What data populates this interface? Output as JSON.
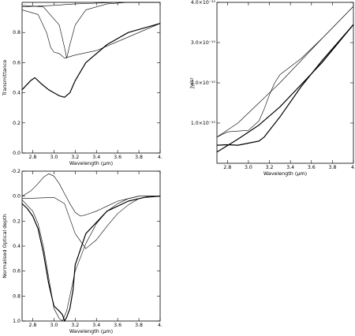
{
  "chart_data": [
    {
      "type": "line",
      "title": "",
      "xlabel": "Wavelength (μm)",
      "ylabel": "Transmittance",
      "xlim": [
        2.7,
        4.0
      ],
      "ylim": [
        0.0,
        1.0
      ],
      "x_ticks": [
        2.8,
        3.0,
        3.2,
        3.4,
        3.6,
        3.8,
        4.0
      ],
      "x_tick_labels": [
        "2.8",
        "3.0",
        "3.2",
        "3.4",
        "3.6",
        "3.8",
        "4."
      ],
      "y_ticks": [
        0.0,
        0.2,
        0.4,
        0.6,
        0.8
      ],
      "y_tick_labels": [
        "0.0",
        "0.2",
        "0.4",
        "0.6",
        "0.8"
      ],
      "series": [
        {
          "style": "thin",
          "x": [
            2.7,
            2.9,
            3.05,
            3.1,
            3.12,
            3.15,
            3.2,
            3.3,
            3.5,
            3.7,
            4.0
          ],
          "y": [
            0.98,
            0.97,
            0.85,
            0.7,
            0.63,
            0.72,
            0.85,
            0.95,
            0.99,
            1.0,
            1.0
          ]
        },
        {
          "style": "thin",
          "x": [
            2.7,
            2.85,
            2.93,
            2.97,
            3.0,
            3.05,
            3.1,
            3.2,
            3.4,
            3.6,
            4.0
          ],
          "y": [
            0.95,
            0.92,
            0.8,
            0.7,
            0.67,
            0.66,
            0.63,
            0.65,
            0.68,
            0.74,
            0.86
          ]
        },
        {
          "style": "thin",
          "x": [
            2.7,
            3.0,
            3.2,
            3.4,
            3.6,
            3.8,
            4.0
          ],
          "y": [
            0.97,
            0.98,
            0.99,
            0.995,
            1.0,
            1.0,
            1.0
          ]
        },
        {
          "style": "thick",
          "x": [
            2.7,
            2.78,
            2.82,
            2.88,
            2.95,
            3.0,
            3.05,
            3.1,
            3.15,
            3.2,
            3.3,
            3.5,
            3.7,
            4.0
          ],
          "y": [
            0.42,
            0.48,
            0.5,
            0.46,
            0.42,
            0.4,
            0.38,
            0.37,
            0.4,
            0.48,
            0.6,
            0.72,
            0.8,
            0.86
          ]
        }
      ]
    },
    {
      "type": "line",
      "title": "",
      "xlabel": "Wavelength (μm)",
      "ylabel": "Jy/sr",
      "xlim": [
        2.7,
        4.0
      ],
      "ylim": [
        0,
        4e-10
      ],
      "x_ticks": [
        2.8,
        3.0,
        3.2,
        3.4,
        3.6,
        3.8,
        4.0
      ],
      "x_tick_labels": [
        "2.8",
        "3.0",
        "3.2",
        "3.4",
        "3.6",
        "3.8",
        "4."
      ],
      "y_ticks": [
        1e-10,
        2e-10,
        3e-10,
        4e-10
      ],
      "y_tick_labels": [
        "1.0×10⁻¹⁰",
        "2.0×10⁻¹⁰",
        "3.0×10⁻¹⁰",
        "4.0×10⁻¹⁰"
      ],
      "series": [
        {
          "style": "thin",
          "x": [
            2.7,
            2.9,
            3.1,
            3.3,
            3.5,
            3.7,
            4.0
          ],
          "y": [
            6.5e-11,
            1e-10,
            1.5e-10,
            2e-10,
            2.55e-10,
            3.1e-10,
            3.9e-10
          ]
        },
        {
          "style": "thick",
          "x": [
            2.7,
            2.9,
            3.1,
            3.3,
            3.5,
            3.7,
            4.0
          ],
          "y": [
            2.8e-11,
            6e-11,
            9.5e-11,
            1.4e-10,
            1.95e-10,
            2.5e-10,
            3.45e-10
          ]
        },
        {
          "style": "thin",
          "x": [
            2.7,
            2.8,
            2.9,
            3.0,
            3.1,
            3.15,
            3.2,
            3.25,
            3.3,
            3.5,
            3.7,
            4.0
          ],
          "y": [
            6.5e-11,
            7.8e-11,
            8e-11,
            8.2e-11,
            1.05e-10,
            1.35e-10,
            1.7e-10,
            2e-10,
            2.2e-10,
            2.6e-10,
            3.1e-10,
            3.9e-10
          ]
        },
        {
          "style": "thick",
          "x": [
            2.7,
            2.8,
            2.9,
            3.0,
            3.1,
            3.15,
            3.2,
            3.3,
            3.5,
            3.7,
            4.0
          ],
          "y": [
            4.5e-11,
            4.6e-11,
            4.5e-11,
            5e-11,
            5.5e-11,
            6.5e-11,
            8.2e-11,
            1.15e-10,
            1.9e-10,
            2.55e-10,
            3.45e-10
          ]
        }
      ]
    },
    {
      "type": "line",
      "title": "",
      "xlabel": "Wavelength (μm)",
      "ylabel": "Normalised Optical depth",
      "xlim": [
        2.7,
        4.0
      ],
      "ylim": [
        -0.2,
        1.0
      ],
      "y_inverted": true,
      "x_ticks": [
        2.8,
        3.0,
        3.2,
        3.4,
        3.6,
        3.8,
        4.0
      ],
      "x_tick_labels": [
        "2.8",
        "3.0",
        "3.2",
        "3.4",
        "3.6",
        "3.8",
        "4."
      ],
      "y_ticks": [
        -0.2,
        0.0,
        0.2,
        0.4,
        0.6,
        0.8,
        1.0
      ],
      "y_tick_labels": [
        "-0.2",
        "0.0",
        "0.2",
        "0.4",
        "0.6",
        "0.8",
        "1.0"
      ],
      "series": [
        {
          "style": "thin",
          "x": [
            2.7,
            2.78,
            2.85,
            2.9,
            2.95,
            3.0,
            3.05,
            3.1,
            3.15,
            3.2,
            3.25,
            3.3,
            3.4,
            3.5,
            3.6,
            3.7,
            3.8,
            4.0
          ],
          "y": [
            0.0,
            -0.04,
            -0.1,
            -0.15,
            -0.18,
            -0.16,
            -0.1,
            -0.02,
            0.06,
            0.13,
            0.16,
            0.15,
            0.12,
            0.08,
            0.04,
            0.02,
            0.0,
            0.0
          ]
        },
        {
          "style": "thin",
          "x": [
            2.7,
            2.8,
            2.85,
            2.9,
            2.95,
            3.0,
            3.05,
            3.08,
            3.12,
            3.15,
            3.2,
            3.3,
            3.4,
            3.5,
            3.6,
            3.7,
            3.8,
            4.0
          ],
          "y": [
            0.03,
            0.12,
            0.22,
            0.4,
            0.65,
            0.9,
            0.98,
            1.0,
            0.92,
            0.8,
            0.6,
            0.38,
            0.22,
            0.12,
            0.06,
            0.02,
            0.0,
            0.0
          ]
        },
        {
          "style": "thick",
          "x": [
            2.7,
            2.75,
            2.8,
            2.85,
            2.9,
            2.95,
            3.0,
            3.05,
            3.08,
            3.1,
            3.12,
            3.15,
            3.18,
            3.2,
            3.3,
            3.5,
            3.7,
            3.85,
            4.0
          ],
          "y": [
            0.06,
            0.1,
            0.16,
            0.26,
            0.45,
            0.7,
            0.88,
            0.92,
            0.95,
            1.0,
            0.97,
            0.9,
            0.75,
            0.55,
            0.3,
            0.12,
            0.04,
            0.01,
            0.0
          ]
        },
        {
          "style": "thin",
          "x": [
            2.7,
            3.0,
            3.1,
            3.2,
            3.3,
            3.4,
            3.5,
            3.6,
            3.7,
            3.8,
            3.9,
            4.0
          ],
          "y": [
            0.02,
            0.01,
            0.06,
            0.3,
            0.42,
            0.35,
            0.24,
            0.14,
            0.07,
            0.02,
            0.0,
            0.0
          ]
        }
      ]
    }
  ]
}
